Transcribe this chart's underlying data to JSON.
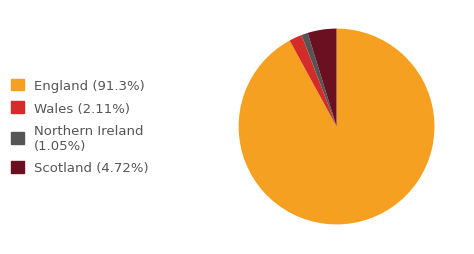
{
  "labels": [
    "England (91.3%)",
    "Wales (2.11%)",
    "Northern Ireland\n(1.05%)",
    "Scotland (4.72%)"
  ],
  "values": [
    91.3,
    2.11,
    1.05,
    4.72
  ],
  "colors": [
    "#F5A020",
    "#D42B2B",
    "#555555",
    "#6B1020"
  ],
  "background_color": "#ffffff",
  "startangle": 90,
  "legend_labels": [
    "England (91.3%)",
    "Wales (2.11%)",
    "Northern Ireland\n(1.05%)",
    "Scotland (4.72%)"
  ],
  "text_color": "#555555",
  "legend_fontsize": 9.5
}
